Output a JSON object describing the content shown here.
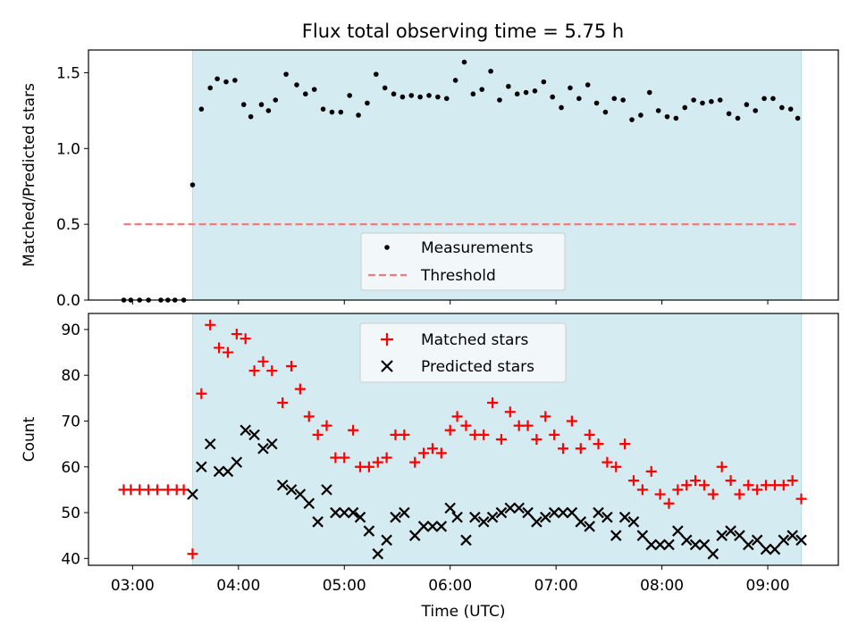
{
  "chart_data": [
    {
      "type": "scatter",
      "title": "Flux total observing time = 5.75 h",
      "xlabel": "",
      "ylabel": "Matched/Predicted stars",
      "xlim": [
        "02:35",
        "09:40"
      ],
      "ylim": [
        0,
        1.65
      ],
      "yticks": [
        0.0,
        0.5,
        1.0,
        1.5
      ],
      "ytick_labels": [
        "0.0",
        "0.5",
        "1.0",
        "1.5"
      ],
      "xticks": [
        "03:00",
        "04:00",
        "05:00",
        "06:00",
        "07:00",
        "08:00",
        "09:00"
      ],
      "shaded_span": [
        "03:34",
        "09:19"
      ],
      "shaded_color": "#d4ebf1",
      "legend_position": "lower center",
      "series": [
        {
          "name": "Measurements",
          "marker": "dot",
          "color": "#000000",
          "x": [
            "02:55",
            "02:59",
            "03:04",
            "03:09",
            "03:16",
            "03:20",
            "03:24",
            "03:29",
            "03:34",
            "03:39",
            "03:44",
            "03:48",
            "03:53",
            "03:58",
            "04:03",
            "04:07",
            "04:13",
            "04:17",
            "04:21",
            "04:27",
            "04:33",
            "04:38",
            "04:43",
            "04:48",
            "04:53",
            "04:58",
            "05:03",
            "05:08",
            "05:13",
            "05:18",
            "05:23",
            "05:28",
            "05:33",
            "05:38",
            "05:43",
            "05:48",
            "05:53",
            "05:58",
            "06:03",
            "06:08",
            "06:13",
            "06:18",
            "06:23",
            "06:28",
            "06:33",
            "06:38",
            "06:43",
            "06:48",
            "06:53",
            "06:58",
            "07:03",
            "07:08",
            "07:13",
            "07:18",
            "07:23",
            "07:28",
            "07:33",
            "07:38",
            "07:43",
            "07:48",
            "07:53",
            "07:58",
            "08:03",
            "08:08",
            "08:13",
            "08:18",
            "08:23",
            "08:28",
            "08:33",
            "08:38",
            "08:43",
            "08:48",
            "08:53",
            "08:58",
            "09:03",
            "09:08",
            "09:13",
            "09:17"
          ],
          "y": [
            0,
            0,
            0,
            0,
            0,
            0,
            0,
            0,
            0.76,
            1.26,
            1.4,
            1.46,
            1.44,
            1.45,
            1.29,
            1.21,
            1.29,
            1.25,
            1.32,
            1.49,
            1.42,
            1.36,
            1.39,
            1.26,
            1.24,
            1.24,
            1.35,
            1.22,
            1.3,
            1.49,
            1.4,
            1.36,
            1.34,
            1.35,
            1.34,
            1.35,
            1.34,
            1.33,
            1.45,
            1.57,
            1.36,
            1.39,
            1.51,
            1.32,
            1.41,
            1.36,
            1.37,
            1.38,
            1.44,
            1.34,
            1.27,
            1.4,
            1.33,
            1.42,
            1.3,
            1.24,
            1.33,
            1.32,
            1.19,
            1.22,
            1.37,
            1.25,
            1.21,
            1.2,
            1.27,
            1.32,
            1.3,
            1.31,
            1.32,
            1.23,
            1.2,
            1.29,
            1.25,
            1.33,
            1.33,
            1.27,
            1.26,
            1.2
          ]
        },
        {
          "name": "Threshold",
          "style": "dashed",
          "color": "#f47b7b",
          "x": [
            "02:55",
            "09:17"
          ],
          "y": [
            0.5,
            0.5
          ]
        }
      ]
    },
    {
      "type": "scatter",
      "title": "",
      "xlabel": "Time (UTC)",
      "ylabel": "Count",
      "xlim": [
        "02:35",
        "09:40"
      ],
      "ylim": [
        38.5,
        93.5
      ],
      "yticks": [
        40,
        50,
        60,
        70,
        80,
        90
      ],
      "xticks": [
        "03:00",
        "04:00",
        "05:00",
        "06:00",
        "07:00",
        "08:00",
        "09:00"
      ],
      "shaded_span": [
        "03:34",
        "09:19"
      ],
      "shaded_color": "#d4ebf1",
      "legend_position": "upper center",
      "series": [
        {
          "name": "Matched stars",
          "marker": "plus",
          "color": "#ff0000",
          "x": [
            "02:55",
            "02:59",
            "03:04",
            "03:09",
            "03:14",
            "03:20",
            "03:25",
            "03:29",
            "03:34",
            "03:39",
            "03:44",
            "03:49",
            "03:54",
            "03:59",
            "04:04",
            "04:09",
            "04:14",
            "04:19",
            "04:25",
            "04:30",
            "04:35",
            "04:40",
            "04:45",
            "04:50",
            "04:55",
            "05:00",
            "05:05",
            "05:09",
            "05:14",
            "05:19",
            "05:24",
            "05:29",
            "05:34",
            "05:40",
            "05:45",
            "05:50",
            "05:55",
            "06:00",
            "06:04",
            "06:09",
            "06:14",
            "06:19",
            "06:24",
            "06:29",
            "06:34",
            "06:39",
            "06:44",
            "06:49",
            "06:54",
            "06:59",
            "07:04",
            "07:09",
            "07:14",
            "07:19",
            "07:24",
            "07:29",
            "07:34",
            "07:39",
            "07:44",
            "07:49",
            "07:54",
            "07:59",
            "08:04",
            "08:09",
            "08:14",
            "08:19",
            "08:24",
            "08:29",
            "08:34",
            "08:39",
            "08:44",
            "08:49",
            "08:54",
            "08:59",
            "09:04",
            "09:09",
            "09:14",
            "09:19"
          ],
          "y": [
            55,
            55,
            55,
            55,
            55,
            55,
            55,
            55,
            41,
            76,
            91,
            86,
            85,
            89,
            88,
            81,
            83,
            81,
            74,
            82,
            77,
            71,
            67,
            69,
            62,
            62,
            68,
            60,
            60,
            61,
            62,
            67,
            67,
            61,
            63,
            64,
            63,
            68,
            71,
            69,
            67,
            67,
            74,
            66,
            72,
            69,
            69,
            66,
            71,
            67,
            64,
            70,
            64,
            67,
            65,
            61,
            60,
            65,
            57,
            55,
            59,
            54,
            52,
            55,
            56,
            57,
            56,
            54,
            60,
            57,
            54,
            56,
            55,
            56,
            56,
            56,
            57,
            53
          ]
        },
        {
          "name": "Predicted stars",
          "marker": "x",
          "color": "#000000",
          "x": [
            "03:34",
            "03:39",
            "03:44",
            "03:49",
            "03:54",
            "03:59",
            "04:04",
            "04:09",
            "04:14",
            "04:19",
            "04:25",
            "04:30",
            "04:35",
            "04:40",
            "04:45",
            "04:50",
            "04:55",
            "05:00",
            "05:05",
            "05:09",
            "05:14",
            "05:19",
            "05:24",
            "05:29",
            "05:34",
            "05:40",
            "05:45",
            "05:50",
            "05:55",
            "06:00",
            "06:04",
            "06:09",
            "06:14",
            "06:19",
            "06:24",
            "06:29",
            "06:34",
            "06:39",
            "06:44",
            "06:49",
            "06:54",
            "06:59",
            "07:04",
            "07:09",
            "07:14",
            "07:19",
            "07:24",
            "07:29",
            "07:34",
            "07:39",
            "07:44",
            "07:49",
            "07:54",
            "07:59",
            "08:04",
            "08:09",
            "08:14",
            "08:19",
            "08:24",
            "08:29",
            "08:34",
            "08:39",
            "08:44",
            "08:49",
            "08:54",
            "08:59",
            "09:04",
            "09:09",
            "09:14",
            "09:19"
          ],
          "y": [
            54,
            60,
            65,
            59,
            59,
            61,
            68,
            67,
            64,
            65,
            56,
            55,
            54,
            52,
            48,
            55,
            50,
            50,
            50,
            49,
            46,
            41,
            44,
            49,
            50,
            45,
            47,
            47,
            47,
            51,
            49,
            44,
            49,
            48,
            49,
            50,
            51,
            51,
            50,
            48,
            49,
            50,
            50,
            50,
            48,
            47,
            50,
            49,
            45,
            49,
            48,
            45,
            43,
            43,
            43,
            46,
            44,
            43,
            43,
            41,
            45,
            46,
            45,
            43,
            44,
            42,
            42,
            44,
            45,
            44
          ]
        }
      ]
    }
  ]
}
